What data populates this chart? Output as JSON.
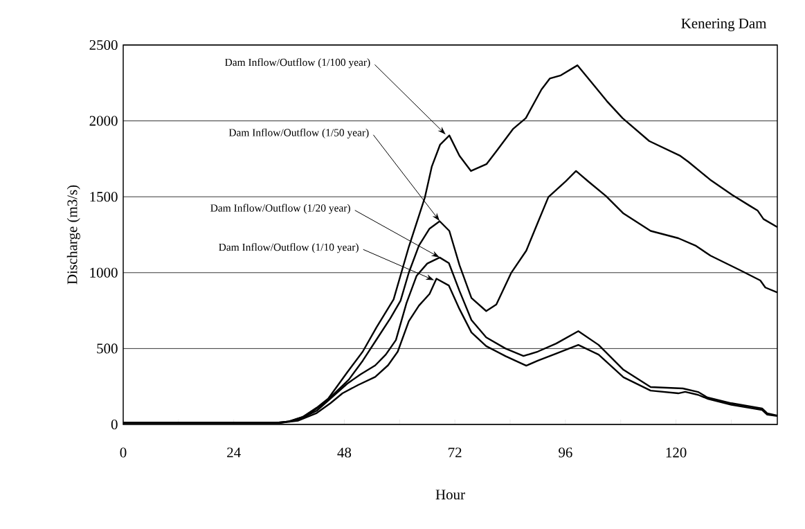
{
  "chart_data": {
    "type": "line",
    "title": "Kenering Dam",
    "xlabel": "Hour",
    "ylabel": "Discharge (m3/s)",
    "xlim": [
      0,
      142
    ],
    "ylim": [
      0,
      2500
    ],
    "xticks": [
      0,
      {
        "value": 12,
        "label": null
      },
      24,
      {
        "value": 36,
        "label": null
      },
      48,
      {
        "value": 60,
        "label": null
      },
      72,
      {
        "value": 84,
        "label": null
      },
      96,
      {
        "value": 108,
        "label": null
      },
      120,
      {
        "value": 132,
        "label": null
      }
    ],
    "yticks": [
      0,
      500,
      1000,
      1500,
      2000,
      2500
    ],
    "grid": "y",
    "marker": "none",
    "line_style": "solid",
    "series": [
      {
        "color": "#000000",
        "x": [
          0,
          33,
          36,
          39,
          42,
          44.5,
          48.6,
          52,
          55,
          58.7,
          62,
          65.5,
          67,
          68.8,
          70.8,
          73,
          75.5,
          78.9,
          81,
          84.6,
          87.4,
          90.8,
          92.6,
          95,
          98.6,
          101.7,
          105,
          108.4,
          114.2,
          120.8,
          122.7,
          127.4,
          132.2,
          136,
          137.7,
          139,
          142
        ],
        "values": [
          10,
          10,
          20,
          50,
          110,
          170,
          342,
          480,
          640,
          824,
          1170,
          1497,
          1700,
          1844,
          1904,
          1770,
          1670,
          1716,
          1800,
          1946,
          2018,
          2207,
          2279,
          2300,
          2366,
          2252,
          2130,
          2018,
          1867,
          1772,
          1730,
          1613,
          1512,
          1441,
          1410,
          1353,
          1300
        ]
      },
      {
        "color": "#000000",
        "x": [
          0,
          33,
          36,
          40,
          44,
          49,
          52,
          55,
          58,
          60.2,
          62,
          64.2,
          66.5,
          68.7,
          70.8,
          73,
          75.6,
          78.8,
          81,
          84.2,
          87.5,
          90,
          92.3,
          96.1,
          98.3,
          101,
          104.8,
          108.6,
          114.5,
          120.5,
          124.2,
          127.5,
          134,
          138.3,
          139.4,
          142
        ],
        "values": [
          10,
          10,
          20,
          60,
          150,
          296,
          420,
          560,
          700,
          815,
          1000,
          1179,
          1290,
          1339,
          1275,
          1050,
          833,
          747,
          790,
          997,
          1145,
          1330,
          1498,
          1603,
          1670,
          1600,
          1505,
          1390,
          1275,
          1227,
          1179,
          1112,
          1015,
          949,
          902,
          870
        ]
      },
      {
        "color": "#000000",
        "x": [
          0,
          34,
          38,
          42,
          45,
          48.6,
          51.5,
          54.7,
          57,
          59.2,
          61.5,
          63.7,
          66,
          68.7,
          70.7,
          73,
          75.6,
          78.8,
          83,
          86.9,
          90,
          94,
          98.8,
          103.2,
          108.6,
          114.5,
          121.5,
          124.8,
          126.8,
          132,
          138.7,
          139.8,
          142
        ],
        "values": [
          10,
          10,
          30,
          90,
          170,
          268,
          330,
          389,
          460,
          556,
          800,
          980,
          1060,
          1100,
          1063,
          880,
          688,
          574,
          500,
          451,
          480,
          533,
          615,
          524,
          360,
          246,
          237,
          214,
          178,
          140,
          105,
          73,
          59
        ]
      },
      {
        "color": "#000000",
        "x": [
          0,
          34,
          38,
          42,
          45,
          47.6,
          51,
          54.7,
          57.5,
          59.6,
          62,
          64.2,
          66.5,
          68,
          70.7,
          73,
          75.6,
          78.8,
          83,
          87.5,
          90,
          94,
          98.8,
          103.2,
          108.6,
          114.5,
          120.5,
          122,
          124.8,
          126.8,
          132,
          138.7,
          139.8,
          142
        ],
        "values": [
          10,
          10,
          25,
          75,
          140,
          205,
          260,
          313,
          390,
          480,
          680,
          783,
          860,
          960,
          915,
          760,
          606,
          516,
          450,
          387,
          420,
          467,
          524,
          460,
          311,
          223,
          205,
          215,
          195,
          170,
          130,
          95,
          65,
          55
        ]
      }
    ],
    "annotations": [
      {
        "text": "Dam Inflow/Outflow (1/100 year)",
        "x": 70,
        "y": 1910
      },
      {
        "text": "Dam Inflow/Outflow (1/50 year)",
        "x": 68.7,
        "y": 1340
      },
      {
        "text": "Dam Inflow/Outflow (1/20 year)",
        "x": 68.7,
        "y": 1100
      },
      {
        "text": "Dam Inflow/Outflow (1/10 year)",
        "x": 67.5,
        "y": 950
      }
    ]
  }
}
